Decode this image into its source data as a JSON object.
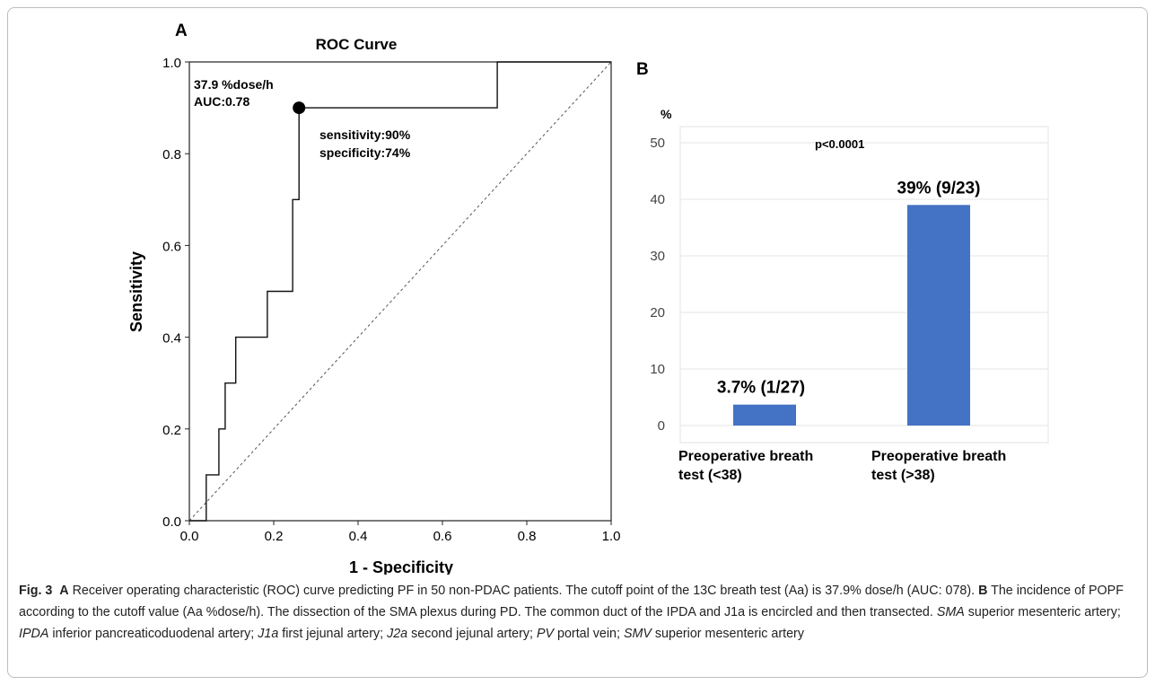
{
  "chart_data": [
    {
      "type": "line",
      "panel": "A",
      "title": "ROC Curve",
      "xlabel": "1 - Specificity",
      "ylabel": "Sensitivity",
      "xlim": [
        0,
        1
      ],
      "ylim": [
        0,
        1
      ],
      "xticks": [
        "0.0",
        "0.2",
        "0.4",
        "0.6",
        "0.8",
        "1.0"
      ],
      "yticks": [
        "0.0",
        "0.2",
        "0.4",
        "0.6",
        "0.8",
        "1.0"
      ],
      "grid": false,
      "series": [
        {
          "style": "step",
          "points": [
            [
              0.0,
              0.0
            ],
            [
              0.04,
              0.0
            ],
            [
              0.04,
              0.1
            ],
            [
              0.07,
              0.1
            ],
            [
              0.07,
              0.2
            ],
            [
              0.085,
              0.2
            ],
            [
              0.085,
              0.3
            ],
            [
              0.11,
              0.3
            ],
            [
              0.11,
              0.4
            ],
            [
              0.185,
              0.4
            ],
            [
              0.185,
              0.5
            ],
            [
              0.245,
              0.5
            ],
            [
              0.245,
              0.7
            ],
            [
              0.26,
              0.7
            ],
            [
              0.26,
              0.9
            ],
            [
              0.73,
              0.9
            ],
            [
              0.73,
              1.0
            ],
            [
              1.0,
              1.0
            ]
          ]
        },
        {
          "style": "diagonal-reference",
          "points": [
            [
              0,
              0
            ],
            [
              1,
              1
            ]
          ]
        }
      ],
      "cutoff_point": [
        0.26,
        0.9
      ],
      "annotations": {
        "cutoff": "37.9 %dose/h",
        "auc": "AUC:0.78",
        "sensitivity": "sensitivity:90%",
        "specificity": "specificity:74%"
      }
    },
    {
      "type": "bar",
      "panel": "B",
      "categories": [
        [
          "Preoperative breath",
          "test (<38)"
        ],
        [
          "Preoperative breath",
          "test (>38)"
        ]
      ],
      "values": [
        3.7,
        39
      ],
      "data_labels": [
        "3.7% (1/27)",
        "39% (9/23)"
      ],
      "ylabel": "%",
      "ylim": [
        0,
        50
      ],
      "yticks": [
        "0",
        "10",
        "20",
        "30",
        "40",
        "50"
      ],
      "grid": true,
      "annotation": "p<0.0001",
      "bar_color": "#4472c4"
    }
  ],
  "caption": {
    "fig_label": "Fig. 3",
    "a_label": "A",
    "a_text": " Receiver operating characteristic (ROC) curve predicting PF in 50 non-PDAC patients. The cutoff point of the 13C breath test (Aa) is 37.9% dose/h (AUC: 078). ",
    "b_label": "B",
    "b_text": " The incidence of POPF according to the cutoff value (Aa %dose/h). The dissection of the SMA plexus during PD. The common duct of the IPDA and J1a is encircled and then transected. ",
    "abbrev": [
      {
        "term": "SMA",
        "def": " superior mesenteric artery; "
      },
      {
        "term": "IPDA",
        "def": " inferior pancreaticoduodenal artery; "
      },
      {
        "term": "J1a",
        "def": " first jejunal artery; "
      },
      {
        "term": "J2a",
        "def": " second jejunal artery; "
      },
      {
        "term": "PV",
        "def": " portal vein; "
      },
      {
        "term": "SMV",
        "def": " superior mesenteric artery"
      }
    ]
  }
}
